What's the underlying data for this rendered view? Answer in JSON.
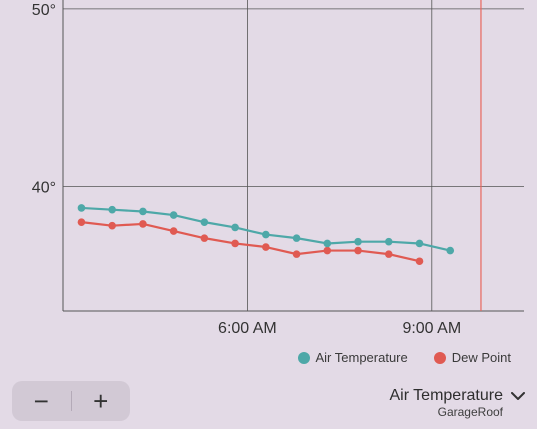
{
  "colors": {
    "air_temperature": "#4ea8a8",
    "dew_point": "#e05a52",
    "grid": "#555555",
    "now_line": "#e8665e"
  },
  "legend": {
    "air_label": "Air Temperature",
    "dew_label": "Dew Point"
  },
  "zoom": {
    "minus_label": "−",
    "plus_label": "+"
  },
  "selector": {
    "title": "Air Temperature",
    "subtitle": "GarageRoof",
    "icon": "chevron-down-icon"
  },
  "chart_data": {
    "type": "line",
    "x_unit": "hours (clock time)",
    "x_range": [
      3.0,
      10.5
    ],
    "y_range": [
      33,
      50.5
    ],
    "y_ticks": [
      {
        "value": 50,
        "label": "50°"
      },
      {
        "value": 40,
        "label": "40°"
      }
    ],
    "x_ticks": [
      {
        "value": 6,
        "label": "6:00 AM"
      },
      {
        "value": 9,
        "label": "9:00 AM"
      }
    ],
    "now_marker": 9.8,
    "series": [
      {
        "name": "Air Temperature",
        "color": "#4ea8a8",
        "points": [
          [
            3.3,
            38.8
          ],
          [
            3.8,
            38.7
          ],
          [
            4.3,
            38.6
          ],
          [
            4.8,
            38.4
          ],
          [
            5.3,
            38.0
          ],
          [
            5.8,
            37.7
          ],
          [
            6.3,
            37.3
          ],
          [
            6.8,
            37.1
          ],
          [
            7.3,
            36.8
          ],
          [
            7.8,
            36.9
          ],
          [
            8.3,
            36.9
          ],
          [
            8.8,
            36.8
          ],
          [
            9.3,
            36.4
          ]
        ]
      },
      {
        "name": "Dew Point",
        "color": "#e05a52",
        "points": [
          [
            3.3,
            38.0
          ],
          [
            3.8,
            37.8
          ],
          [
            4.3,
            37.9
          ],
          [
            4.8,
            37.5
          ],
          [
            5.3,
            37.1
          ],
          [
            5.8,
            36.8
          ],
          [
            6.3,
            36.6
          ],
          [
            6.8,
            36.2
          ],
          [
            7.3,
            36.4
          ],
          [
            7.8,
            36.4
          ],
          [
            8.3,
            36.2
          ],
          [
            8.8,
            35.8
          ]
        ]
      }
    ]
  }
}
